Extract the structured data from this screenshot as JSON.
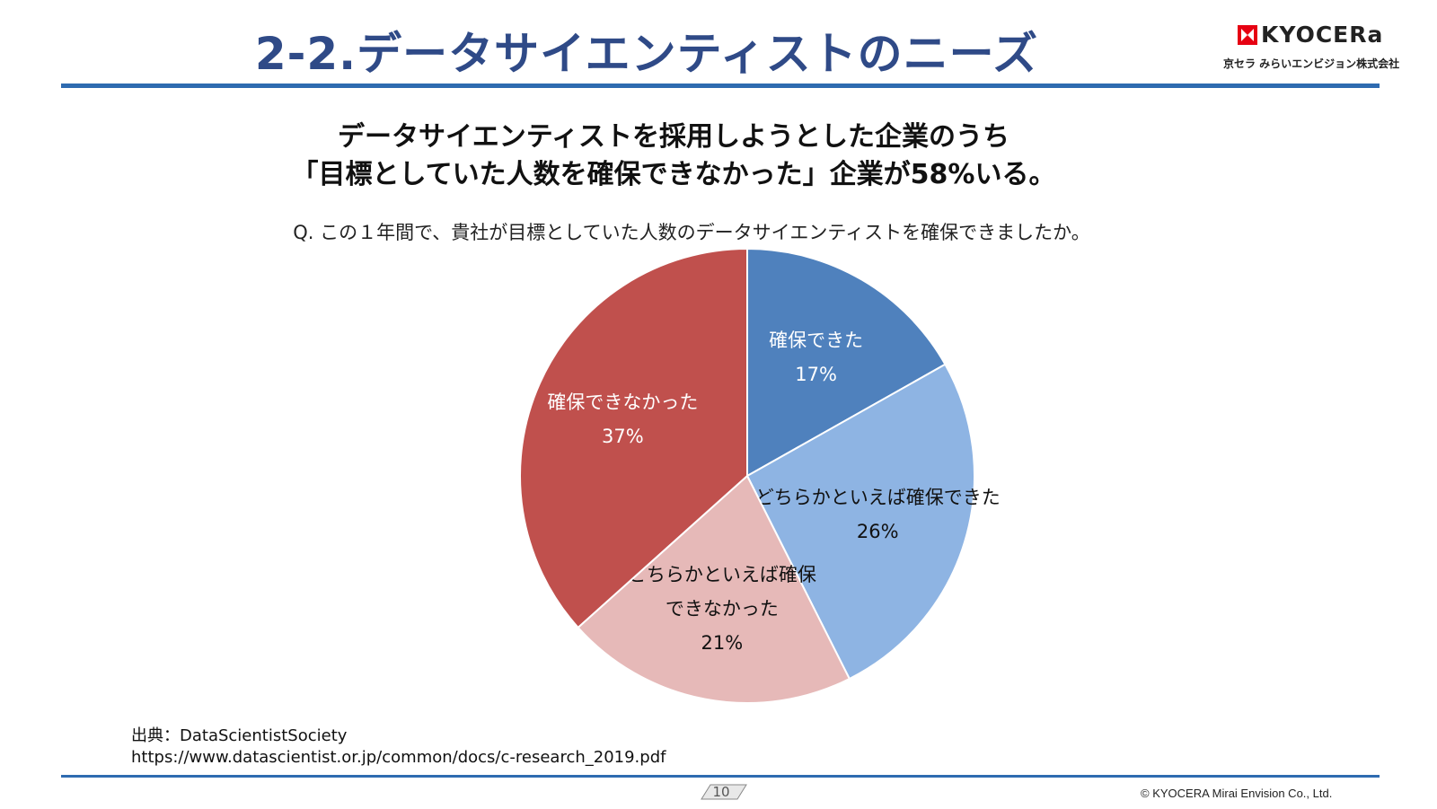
{
  "header": {
    "title": "2-2.データサイエンティストのニーズ",
    "logo_text": "KYOCERa",
    "logo_subtext": "京セラ みらいエンビジョン株式会社"
  },
  "headline": {
    "line1": "データサイエンティストを採用しようとした企業のうち",
    "line2": "「目標としていた人数を確保できなかった」企業が58%いる。"
  },
  "question": "Q. この１年間で、貴社が目標としていた人数のデータサイエンティストを確保できましたか。",
  "chart_data": {
    "type": "pie",
    "start_angle_deg": 0,
    "direction": "clockwise",
    "slices": [
      {
        "label_lines": [
          "確保できた"
        ],
        "value": 17,
        "value_label": "17%",
        "color": "#4f81bd",
        "text_color": "#ffffff"
      },
      {
        "label_lines": [
          "どちらかといえば確保できた"
        ],
        "value": 26,
        "value_label": "26%",
        "color": "#8eb4e3",
        "text_color": "#111111"
      },
      {
        "label_lines": [
          "どちらかといえば確保",
          "できなかった"
        ],
        "value": 21,
        "value_label": "21%",
        "color": "#e6b9b8",
        "text_color": "#111111"
      },
      {
        "label_lines": [
          "確保できなかった"
        ],
        "value": 37,
        "value_label": "37%",
        "color": "#c0504d",
        "text_color": "#ffffff"
      }
    ]
  },
  "source": {
    "line1": "出典：DataScientistSociety",
    "line2": "https://www.datascientist.or.jp/common/docs/c-research_2019.pdf"
  },
  "footer": {
    "page_number": "10",
    "copyright": "© KYOCERA Mirai Envision Co., Ltd."
  }
}
